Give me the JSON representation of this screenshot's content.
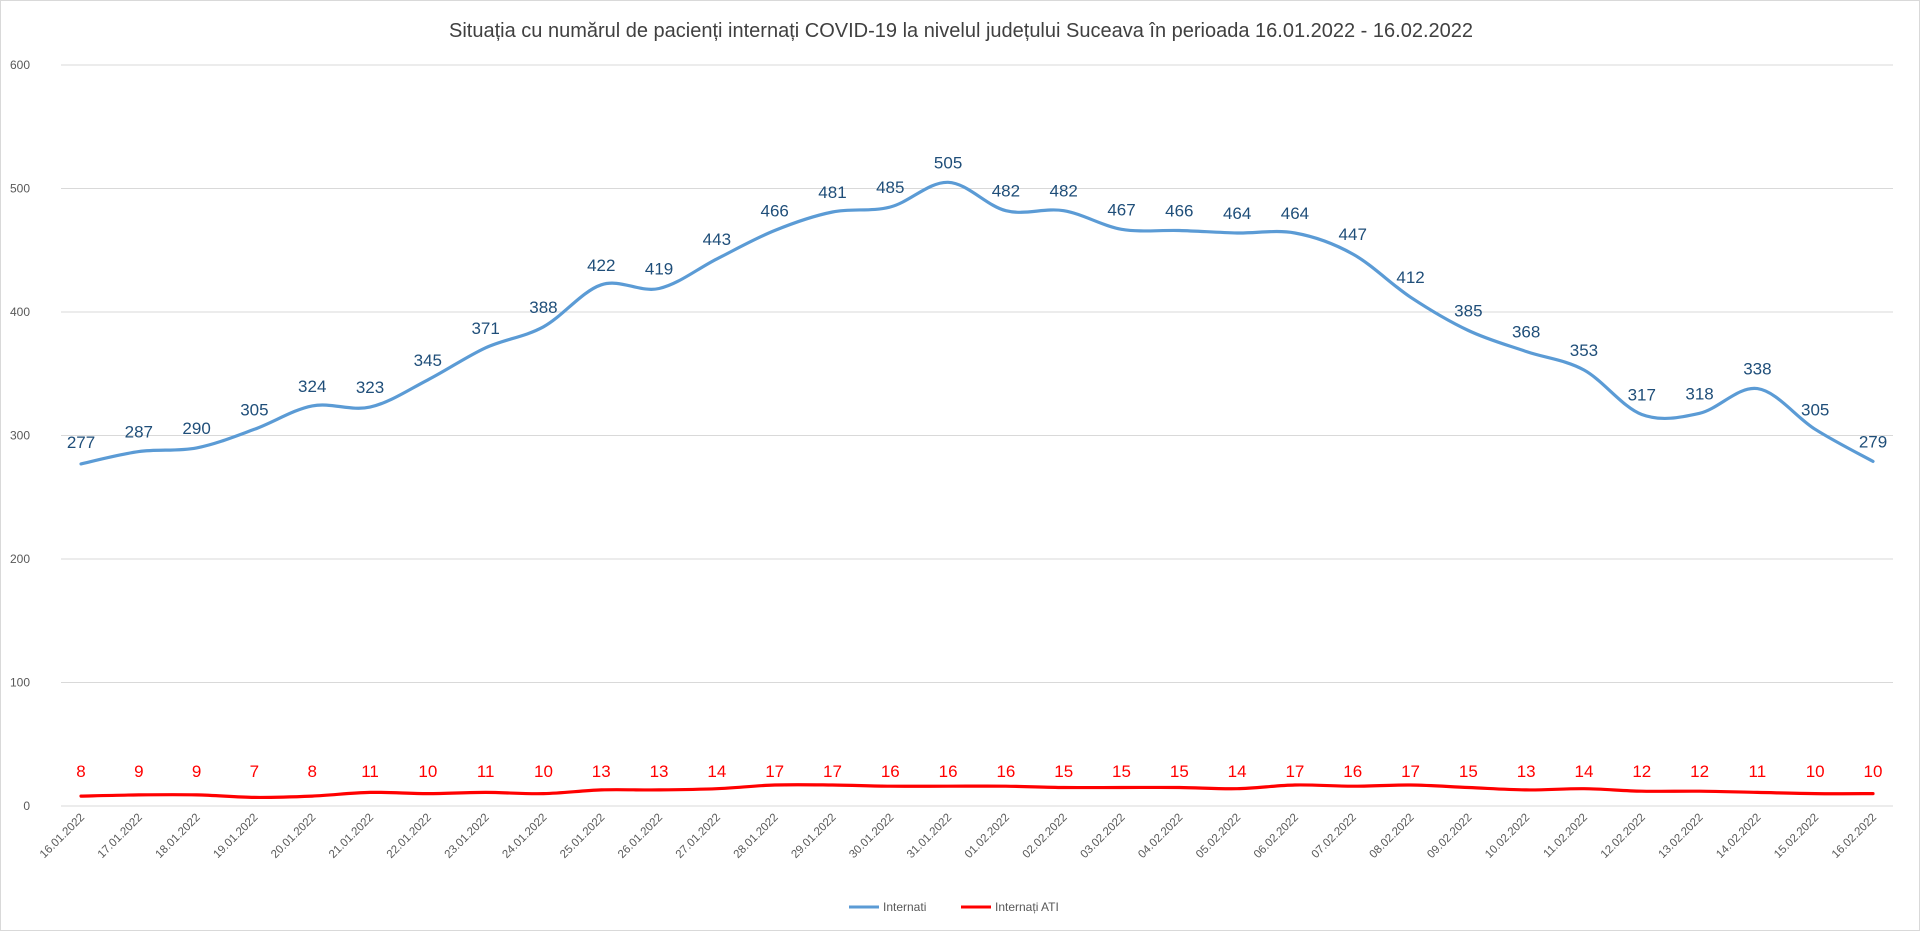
{
  "chart_data": {
    "type": "line",
    "title": "Situația cu numărul de pacienți internați COVID-19 la nivelul județului Suceava în perioada 16.01.2022 - 16.02.2022",
    "xlabel": "",
    "ylabel": "",
    "ylim": [
      0,
      600
    ],
    "yticks": [
      0,
      100,
      200,
      300,
      400,
      500,
      600
    ],
    "grid": true,
    "legend_position": "bottom",
    "categories": [
      "16.01.2022",
      "17.01.2022",
      "18.01.2022",
      "19.01.2022",
      "20.01.2022",
      "21.01.2022",
      "22.01.2022",
      "23.01.2022",
      "24.01.2022",
      "25.01.2022",
      "26.01.2022",
      "27.01.2022",
      "28.01.2022",
      "29.01.2022",
      "30.01.2022",
      "31.01.2022",
      "01.02.2022",
      "02.02.2022",
      "03.02.2022",
      "04.02.2022",
      "05.02.2022",
      "06.02.2022",
      "07.02.2022",
      "08.02.2022",
      "09.02.2022",
      "10.02.2022",
      "11.02.2022",
      "12.02.2022",
      "13.02.2022",
      "14.02.2022",
      "15.02.2022",
      "16.02.2022"
    ],
    "series": [
      {
        "name": "Internati",
        "color": "#5b9bd5",
        "label_color": "#1f4e79",
        "values": [
          277,
          287,
          290,
          305,
          324,
          323,
          345,
          371,
          388,
          422,
          419,
          443,
          466,
          481,
          485,
          505,
          482,
          482,
          467,
          466,
          464,
          464,
          447,
          412,
          385,
          368,
          353,
          317,
          318,
          338,
          305,
          279
        ]
      },
      {
        "name": "Internați ATI",
        "color": "#ff0000",
        "label_color": "#ff0000",
        "values": [
          8,
          9,
          9,
          7,
          8,
          11,
          10,
          11,
          10,
          13,
          13,
          14,
          17,
          17,
          16,
          16,
          16,
          15,
          15,
          15,
          14,
          17,
          16,
          17,
          15,
          13,
          14,
          12,
          12,
          11,
          10,
          10
        ]
      }
    ]
  }
}
